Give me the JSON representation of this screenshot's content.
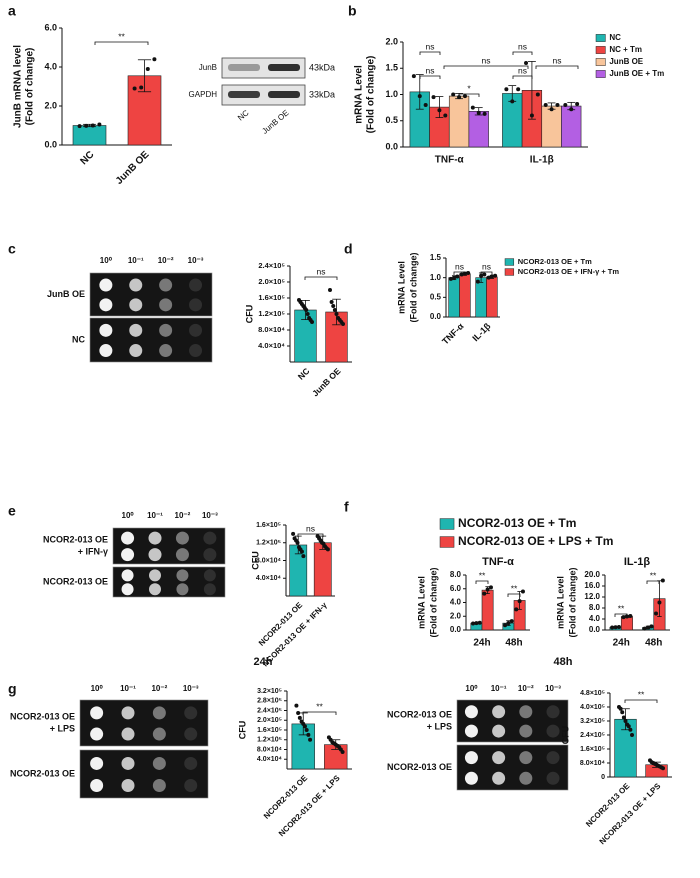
{
  "panel_labels": [
    "a",
    "b",
    "c",
    "d",
    "e",
    "f",
    "g"
  ],
  "blot": {
    "bands": [
      "JunB",
      "GAPDH"
    ],
    "sizes": [
      "43kDa",
      "33kDa"
    ],
    "lanes": [
      "NC",
      "JunB OE"
    ]
  },
  "plates": [
    {
      "dilutions": [
        "10⁰",
        "10⁻¹",
        "10⁻²",
        "10⁻³"
      ],
      "rows": [
        [
          "JunB OE"
        ],
        [
          "NC"
        ]
      ]
    },
    {
      "dilutions": [
        "10⁰",
        "10⁻¹",
        "10⁻²",
        "10⁻³"
      ],
      "rows": [
        [
          "NCOR2-013 OE",
          "+ IFN-γ"
        ],
        [
          "NCOR2-013 OE"
        ]
      ]
    },
    {
      "dilutions": [
        "10⁰",
        "10⁻¹",
        "10⁻²",
        "10⁻³"
      ],
      "rows": [
        [
          "NCOR2-013 OE",
          "+ LPS"
        ],
        [
          "NCOR2-013 OE"
        ]
      ]
    },
    {
      "dilutions": [
        "10⁰",
        "10⁻¹",
        "10⁻²",
        "10⁻³"
      ],
      "rows": [
        [
          "NCOR2-013 OE",
          "+ LPS"
        ],
        [
          "NCOR2-013 OE"
        ]
      ]
    }
  ],
  "chart_data": [
    {
      "type": "bar",
      "ylabel": [
        "JunB mRNA level",
        "(Fold of change)"
      ],
      "categories": [
        "NC",
        "JunB OE"
      ],
      "series": [
        {
          "colors": [
            "#1fb5b0",
            "#ee4442"
          ],
          "values": [
            1.0,
            3.55
          ],
          "errors": [
            0.06,
            0.82
          ],
          "points": [
            [
              0.97,
              0.98,
              1.0,
              1.05
            ],
            [
              2.9,
              2.95,
              3.9,
              4.4
            ]
          ]
        }
      ],
      "ylim": [
        0,
        6
      ],
      "yticks": [
        {
          "value": 0,
          "label": "0.0"
        },
        {
          "value": 2,
          "label": "2.0"
        },
        {
          "value": 4,
          "label": "4.0"
        },
        {
          "value": 6,
          "label": "6.0"
        }
      ],
      "annotations": [
        "**"
      ]
    },
    {
      "type": "bar",
      "ylabel": [
        "mRNA Level",
        "(Fold of change)"
      ],
      "categories": [
        "TNF-α",
        "IL-1β"
      ],
      "series": [
        {
          "name": "NC",
          "color": "#1fb5b0",
          "values": [
            1.05,
            1.02
          ],
          "errors": [
            0.33,
            0.15
          ],
          "points": [
            [
              1.35,
              0.97,
              0.8
            ],
            [
              1.1,
              0.87,
              1.1
            ]
          ]
        },
        {
          "name": "NC + Tm",
          "color": "#ee4442",
          "values": [
            0.76,
            1.08
          ],
          "errors": [
            0.2,
            0.55
          ],
          "points": [
            [
              0.95,
              0.7,
              0.6
            ],
            [
              1.6,
              0.6,
              1.0
            ]
          ]
        },
        {
          "name": "JunB OE",
          "color": "#f8c59b",
          "values": [
            0.97,
            0.78
          ],
          "errors": [
            0.05,
            0.06
          ],
          "points": [
            [
              1.0,
              0.95,
              0.97
            ],
            [
              0.8,
              0.72,
              0.8
            ]
          ]
        },
        {
          "name": "JunB OE + Tm",
          "color": "#b35fe3",
          "values": [
            0.68,
            0.78
          ],
          "errors": [
            0.07,
            0.07
          ],
          "points": [
            [
              0.75,
              0.65,
              0.63
            ],
            [
              0.8,
              0.72,
              0.82
            ]
          ]
        }
      ],
      "ylim": [
        0,
        2
      ],
      "yticks": [
        {
          "value": 0,
          "label": "0.0"
        },
        0.5,
        {
          "value": 1,
          "label": "1.0"
        },
        1.5,
        {
          "value": 2,
          "label": "2.0"
        }
      ],
      "annotations": [
        "ns",
        "ns",
        "ns",
        "*",
        "ns",
        "ns",
        "ns"
      ]
    },
    {
      "type": "bar",
      "ylabel": [
        "CFU"
      ],
      "categories": [
        "NC",
        "JunB OE"
      ],
      "series": [
        {
          "colors": [
            "#1fb5b0",
            "#ee4442"
          ],
          "values": [
            130000,
            125000
          ],
          "errors": [
            24000,
            32000
          ],
          "points": [
            [
              155000,
              150000,
              145000,
              140000,
              135000,
              130000,
              120000,
              110000,
              105000,
              100000
            ],
            [
              180000,
              150000,
              140000,
              130000,
              120000,
              110000,
              105000,
              100000,
              95000
            ]
          ]
        }
      ],
      "ylim": [
        0,
        240000
      ],
      "yticks": [
        {
          "value": 40000,
          "label": "4.0×10⁴"
        },
        {
          "value": 80000,
          "label": "8.0×10⁴"
        },
        {
          "value": 120000,
          "label": "1.2×10⁵"
        },
        {
          "value": 160000,
          "label": "1.6×10⁵"
        },
        {
          "value": 200000,
          "label": "2.0×10⁵"
        },
        {
          "value": 240000,
          "label": "2.4×10⁵"
        }
      ],
      "annotations": [
        "ns"
      ]
    },
    {
      "type": "bar",
      "ylabel": [
        "mRNA Level",
        "(Fold of change)"
      ],
      "categories": [
        "TNF-α",
        "IL-1β"
      ],
      "series": [
        {
          "name": "NCOR2-013 OE + Tm",
          "color": "#1fb5b0",
          "values": [
            1.0,
            1.0
          ],
          "errors": [
            0.05,
            0.12
          ],
          "points": [
            [
              0.97,
              1.0,
              1.03
            ],
            [
              0.9,
              1.05,
              1.08
            ]
          ]
        },
        {
          "name": "NCOR2-013 OE + IFN-γ + Tm",
          "color": "#ee4442",
          "values": [
            1.1,
            1.02
          ],
          "errors": [
            0.04,
            0.04
          ],
          "points": [
            [
              1.08,
              1.1,
              1.12
            ],
            [
              1.0,
              1.03,
              1.05
            ]
          ]
        }
      ],
      "ylim": [
        0,
        1.5
      ],
      "yticks": [
        {
          "value": 0,
          "label": "0.0"
        },
        0.5,
        {
          "value": 1,
          "label": "1.0"
        },
        1.5
      ],
      "annotations": [
        "ns",
        "ns"
      ]
    },
    {
      "type": "bar",
      "ylabel": [
        "CFU"
      ],
      "categories": [
        "NCOR2-013 OE",
        "NCOR2-013 OE + IFN-γ"
      ],
      "series": [
        {
          "colors": [
            "#1fb5b0",
            "#ee4442"
          ],
          "values": [
            115000,
            120000
          ],
          "errors": [
            20000,
            15000
          ],
          "points": [
            [
              140000,
              130000,
              125000,
              120000,
              110000,
              105000,
              100000,
              90000
            ],
            [
              135000,
              130000,
              125000,
              120000,
              118000,
              112000,
              108000,
              105000
            ]
          ]
        }
      ],
      "ylim": [
        0,
        160000
      ],
      "yticks": [
        {
          "value": 40000,
          "label": "4.0×10⁴"
        },
        {
          "value": 80000,
          "label": "8.0×10⁴"
        },
        {
          "value": 120000,
          "label": "1.2×10⁵"
        },
        {
          "value": 160000,
          "label": "1.6×10⁵"
        }
      ],
      "annotations": [
        "ns"
      ]
    },
    {
      "type": "bar",
      "title": "TNF-α",
      "ylabel": [
        "mRNA Level",
        "(Fold of change)"
      ],
      "categories": [
        "24h",
        "48h"
      ],
      "series": [
        {
          "name": "NCOR2-013 OE + Tm",
          "color": "#1fb5b0",
          "values": [
            1.0,
            1.0
          ],
          "errors": [
            0.1,
            0.35
          ],
          "points": [
            [
              0.95,
              1.0,
              1.05
            ],
            [
              0.7,
              1.0,
              1.3
            ]
          ]
        },
        {
          "name": "NCOR2-013 OE + LPS + Tm",
          "color": "#ee4442",
          "values": [
            5.8,
            4.3
          ],
          "errors": [
            0.5,
            1.3
          ],
          "points": [
            [
              5.3,
              5.9,
              6.2
            ],
            [
              3.0,
              4.2,
              5.6
            ]
          ]
        }
      ],
      "ylim": [
        0,
        8
      ],
      "yticks": [
        {
          "value": 0,
          "label": "0.0"
        },
        {
          "value": 2,
          "label": "2.0"
        },
        {
          "value": 4,
          "label": "4.0"
        },
        {
          "value": 6,
          "label": "6.0"
        },
        {
          "value": 8,
          "label": "8.0"
        }
      ],
      "annotations": [
        "**",
        "**"
      ]
    },
    {
      "type": "bar",
      "title": "IL-1β",
      "ylabel": [
        "mRNA Level",
        "(Fold of change)"
      ],
      "categories": [
        "24h",
        "48h"
      ],
      "series": [
        {
          "color": "#1fb5b0",
          "values": [
            1.0,
            0.9
          ],
          "errors": [
            0.2,
            0.5
          ],
          "points": [
            [
              0.9,
              1.0,
              1.1
            ],
            [
              0.5,
              0.9,
              1.3
            ]
          ]
        },
        {
          "color": "#ee4442",
          "values": [
            4.9,
            11.4
          ],
          "errors": [
            0.3,
            6.5
          ],
          "points": [
            [
              4.7,
              4.9,
              5.1
            ],
            [
              6.0,
              10.0,
              18.0
            ]
          ]
        }
      ],
      "ylim": [
        0,
        20
      ],
      "yticks": [
        {
          "value": 0,
          "label": "0.0"
        },
        {
          "value": 4,
          "label": "4.0"
        },
        {
          "value": 8,
          "label": "8.0"
        },
        {
          "value": 12,
          "label": "12.0"
        },
        {
          "value": 16,
          "label": "16.0"
        },
        {
          "value": 20,
          "label": "20.0"
        }
      ],
      "annotations": [
        "**",
        "**"
      ]
    },
    {
      "type": "bar",
      "title": "24h",
      "ylabel": [
        "CFU"
      ],
      "categories": [
        "NCOR2-013 OE",
        "NCOR2-013 OE + LPS"
      ],
      "series": [
        {
          "colors": [
            "#1fb5b0",
            "#ee4442"
          ],
          "values": [
            185000,
            100000
          ],
          "errors": [
            45000,
            20000
          ],
          "points": [
            [
              260000,
              230000,
              210000,
              195000,
              185000,
              175000,
              160000,
              140000,
              120000
            ],
            [
              130000,
              120000,
              110000,
              105000,
              100000,
              95000,
              90000,
              80000,
              70000
            ]
          ]
        }
      ],
      "ylim": [
        0,
        320000
      ],
      "yticks": [
        {
          "value": 40000,
          "label": "4.0×10⁴"
        },
        {
          "value": 80000,
          "label": "8.0×10⁴"
        },
        {
          "value": 120000,
          "label": "1.2×10⁵"
        },
        {
          "value": 160000,
          "label": "1.6×10⁵"
        },
        {
          "value": 200000,
          "label": "2.0×10⁵"
        },
        {
          "value": 240000,
          "label": "2.4×10⁵"
        },
        {
          "value": 280000,
          "label": "2.8×10⁵"
        },
        {
          "value": 320000,
          "label": "3.2×10⁵"
        }
      ],
      "annotations": [
        "**"
      ]
    },
    {
      "type": "bar",
      "title": "48h",
      "ylabel": [
        "CFU"
      ],
      "categories": [
        "NCOR2-013 OE",
        "NCOR2-013 OE + LPS"
      ],
      "series": [
        {
          "colors": [
            "#1fb5b0",
            "#ee4442"
          ],
          "values": [
            330000,
            70000
          ],
          "errors": [
            60000,
            15000
          ],
          "points": [
            [
              400000,
              390000,
              370000,
              340000,
              320000,
              300000,
              290000,
              270000,
              240000
            ],
            [
              95000,
              85000,
              80000,
              75000,
              70000,
              65000,
              60000,
              55000,
              50000
            ]
          ]
        }
      ],
      "ylim": [
        0,
        480000
      ],
      "yticks": [
        0,
        {
          "value": 80000,
          "label": "8.0×10⁴"
        },
        {
          "value": 160000,
          "label": "1.6×10⁵"
        },
        {
          "value": 240000,
          "label": "2.4×10⁵"
        },
        {
          "value": 320000,
          "label": "3.2×10⁵"
        },
        {
          "value": 400000,
          "label": "4.0×10⁵"
        },
        {
          "value": 480000,
          "label": "4.8×10⁵"
        }
      ],
      "annotations": [
        "**"
      ]
    }
  ]
}
